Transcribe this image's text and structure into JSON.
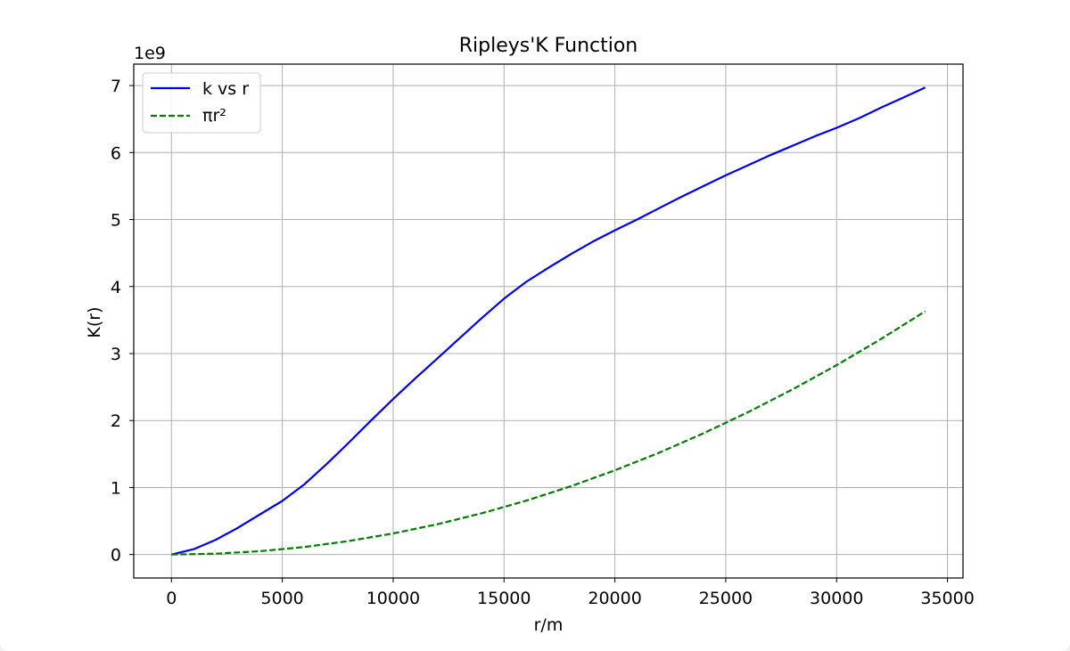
{
  "chart_data": {
    "type": "line",
    "title": "Ripleys'K Function",
    "xlabel": "r/m",
    "ylabel": "K(r)",
    "y_offset_text": "1e9",
    "xlim": [
      -1700,
      35700
    ],
    "ylim": [
      -0.35,
      7.32
    ],
    "y_scale_factor": 1000000000,
    "x_ticks": [
      0,
      5000,
      10000,
      15000,
      20000,
      25000,
      30000,
      35000
    ],
    "x_tick_labels": [
      "0",
      "5000",
      "10000",
      "15000",
      "20000",
      "25000",
      "30000",
      "35000"
    ],
    "y_ticks": [
      0,
      1,
      2,
      3,
      4,
      5,
      6,
      7
    ],
    "y_tick_labels": [
      "0",
      "1",
      "2",
      "3",
      "4",
      "5",
      "6",
      "7"
    ],
    "grid": true,
    "legend": {
      "placement": "top-left",
      "entries": [
        "k vs r",
        "πr²"
      ]
    },
    "series": [
      {
        "name": "k vs r",
        "color": "#0000ff",
        "style": "solid",
        "x": [
          0,
          1000,
          2000,
          3000,
          4000,
          5000,
          6000,
          7000,
          8000,
          9000,
          10000,
          11000,
          12000,
          13000,
          14000,
          15000,
          16000,
          17000,
          18000,
          19000,
          20000,
          21000,
          22000,
          23000,
          24000,
          25000,
          26000,
          27000,
          28000,
          29000,
          30000,
          31000,
          32000,
          33000,
          34000
        ],
        "y": [
          0,
          0.08,
          0.22,
          0.4,
          0.6,
          0.8,
          1.05,
          1.35,
          1.67,
          2.0,
          2.32,
          2.63,
          2.93,
          3.23,
          3.53,
          3.82,
          4.07,
          4.28,
          4.48,
          4.67,
          4.84,
          5.0,
          5.17,
          5.34,
          5.5,
          5.66,
          5.81,
          5.96,
          6.1,
          6.24,
          6.37,
          6.51,
          6.67,
          6.82,
          6.97
        ]
      },
      {
        "name": "πr²",
        "color": "#008000",
        "style": "dashed",
        "x": [
          0,
          2000,
          4000,
          6000,
          8000,
          10000,
          12000,
          14000,
          16000,
          18000,
          20000,
          22000,
          24000,
          26000,
          28000,
          30000,
          32000,
          34000
        ],
        "y": [
          0,
          0.0126,
          0.0503,
          0.1131,
          0.2011,
          0.3142,
          0.4524,
          0.6158,
          0.8042,
          1.0179,
          1.2566,
          1.5205,
          1.8096,
          2.1237,
          2.463,
          2.8274,
          3.217,
          3.6317
        ]
      }
    ]
  }
}
